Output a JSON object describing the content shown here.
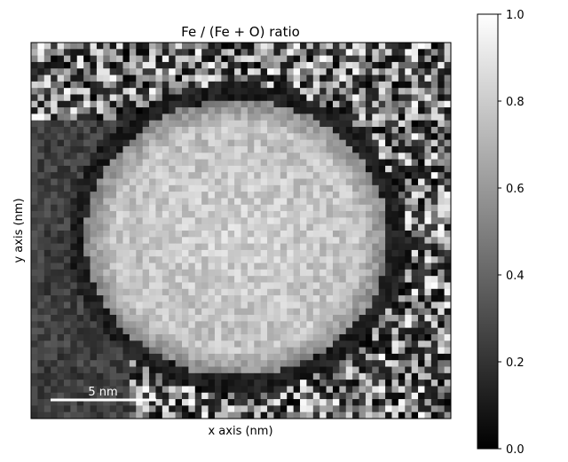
{
  "chart_data": {
    "type": "heatmap",
    "title": "Fe / (Fe + O) ratio",
    "xlabel": "x axis (nm)",
    "ylabel": "y axis (nm)",
    "colormap": "gray",
    "scalebar_label": "5 nm",
    "colorbar": {
      "range": [
        0.0,
        1.0
      ],
      "ticks": [
        0.0,
        0.2,
        0.4,
        0.6,
        0.8,
        1.0
      ],
      "tick_labels": [
        "0.0",
        "0.2",
        "0.4",
        "0.6",
        "0.8",
        "1.0"
      ]
    },
    "grid": false,
    "x_ticks_shown": false,
    "y_ticks_shown": false,
    "map_resolution": [
      64,
      58
    ],
    "map_description_values": {
      "particle_core": 0.82,
      "particle_shell": 0.52,
      "dark_ring": 0.12,
      "background_noise_range": [
        0.0,
        1.0
      ]
    }
  }
}
